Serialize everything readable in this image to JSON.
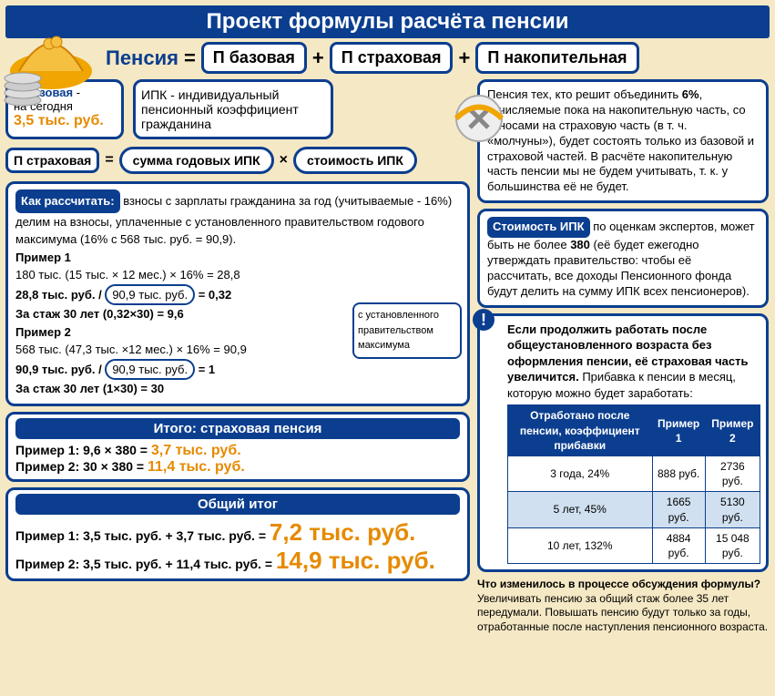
{
  "title": "Проект формулы расчёта пенсии",
  "formula": {
    "label": "Пенсия",
    "base": "П базовая",
    "insurance": "П страховая",
    "funded": "П накопительная"
  },
  "base_today": {
    "label": "П базовая",
    "note": "на сегодня",
    "value": "3,5 тыс. руб."
  },
  "ipk_def": "ИПК - индивидуальный пенсионный коэффициент гражданина",
  "ins_formula": {
    "label": "П страховая",
    "left": "сумма годовых ИПК",
    "right": "стоимость ИПК"
  },
  "calc": {
    "title": "Как рассчитать:",
    "intro": "взносы с зарплаты гражданина за год (учитываемые - 16%) делим на взносы, уплаченные с установленного правительством годового максимума (16% с 568 тыс. руб. = 90,9).",
    "ex1_title": "Пример 1",
    "ex1_line1": "180 тыс. (15 тыс. × 12 мес.) × 16% = 28,8",
    "ex1_line2a": "28,8 тыс. руб. /",
    "ex1_boxed": "90,9 тыс. руб.",
    "ex1_line2b": "= 0,32",
    "ex1_line3": "За стаж 30 лет (0,32×30) = 9,6",
    "ex2_title": "Пример 2",
    "ex2_line1": "568 тыс. (47,3 тыс. ×12 мес.) × 16% = 90,9",
    "ex2_line2a": "90,9 тыс. руб. /",
    "ex2_boxed": "90,9 тыс. руб.",
    "ex2_line2b": "= 1",
    "ex2_line3": "За стаж 30 лет (1×30) = 30",
    "gov_note": "с установленного правительством максимума"
  },
  "itog_ins": {
    "title": "Итого: страховая пенсия",
    "ex1": "Пример 1: 9,6 × 380 =",
    "ex1_val": "3,7 тыс. руб.",
    "ex2": "Пример 2: 30 × 380 =",
    "ex2_val": "11,4 тыс. руб."
  },
  "grand": {
    "title": "Общий итог",
    "ex1": "Пример 1: 3,5 тыс. руб. + 3,7 тыс. руб. =",
    "ex1_val": "7,2 тыс. руб.",
    "ex2": "Пример 2: 3,5 тыс. руб. + 11,4 тыс. руб. =",
    "ex2_val": "14,9 тыс. руб."
  },
  "right_funded": "Пенсия тех, кто решит объединить <b>6%</b>, отчисляемые пока на накопительную часть, со взносами на страховую часть (в т. ч. «молчуны»), будет состоять только из базовой и страховой частей. В расчёте накопительную часть пенсии мы не будем учитывать, т. к. у большинства её не будет.",
  "ipk_cost_label": "Стоимость ИПК",
  "right_ipk": "по оценкам экспертов, может быть не более <b>380</b> (её будет ежегодно утверждать правительство: чтобы её рассчитать, все доходы Пенсионного фонда будут делить на сумму ИПК всех пенсионеров).",
  "notice": "<b>Если продолжить работать после общеустановленного возраста без оформления пенсии, её страховая часть увеличится.</b> Прибавка к пенсии в месяц, которую можно будет заработать:",
  "table": {
    "headers": [
      "Отработано после пенсии, коэффициент прибавки",
      "Пример 1",
      "Пример 2"
    ],
    "rows": [
      [
        "3 года, 24%",
        "888 руб.",
        "2736 руб."
      ],
      [
        "5 лет, 45%",
        "1665 руб.",
        "5130 руб."
      ],
      [
        "10 лет, 132%",
        "4884 руб.",
        "15 048 руб."
      ]
    ]
  },
  "footnote_title": "Что изменилось в процессе обсуждения формулы?",
  "footnote": "Увеличивать пенсию за общий стаж более 35 лет передумали. Повышать пенсию будут только за годы, отработанные после наступления пенсионного возраста.",
  "colors": {
    "primary": "#0b3e8f",
    "accent": "#e68a00",
    "bg": "#f5e8c4"
  }
}
